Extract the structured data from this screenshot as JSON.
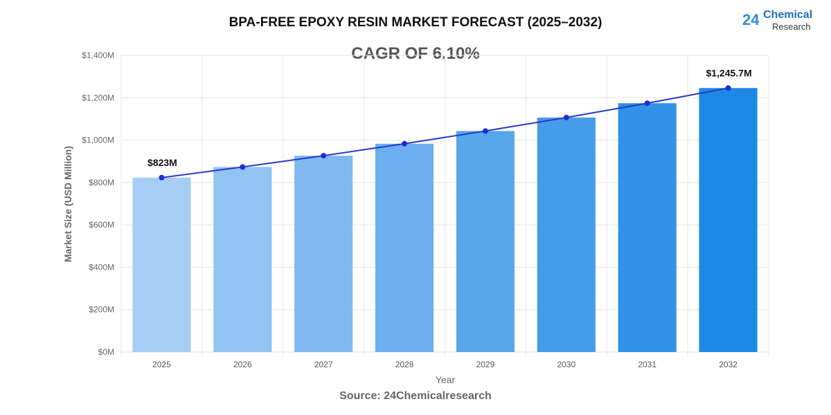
{
  "chart_data": {
    "type": "bar",
    "title": "BPA-FREE EPOXY RESIN MARKET FORECAST (2025–2032)",
    "subtitle": "CAGR OF 6.10%",
    "xlabel": "Year",
    "ylabel": "Market Size (USD Million)",
    "source": "Source: 24Chemicalresearch",
    "categories": [
      "2025",
      "2026",
      "2027",
      "2028",
      "2029",
      "2030",
      "2031",
      "2032"
    ],
    "values": [
      823,
      873.2,
      926.5,
      983.0,
      1043.0,
      1106.6,
      1174.1,
      1245.7
    ],
    "overlay_line": true,
    "data_labels": [
      {
        "index": 0,
        "text": "$823M"
      },
      {
        "index": 7,
        "text": "$1,245.7M"
      }
    ],
    "ylim": [
      0,
      1400
    ],
    "yticks": [
      0,
      200,
      400,
      600,
      800,
      1000,
      1200,
      1400
    ],
    "ytick_labels": [
      "$0M",
      "$200M",
      "$400M",
      "$600M",
      "$800M",
      "$1,000M",
      "$1,200M",
      "$1,400M"
    ],
    "grid": true,
    "colors": {
      "bar_start": "#a6cdf4",
      "bar_end": "#1e88e5",
      "line": "#2638c9",
      "point": "#1a2fd0"
    }
  },
  "logo": {
    "number": "24",
    "line1": "Chemical",
    "line2": "Research"
  }
}
